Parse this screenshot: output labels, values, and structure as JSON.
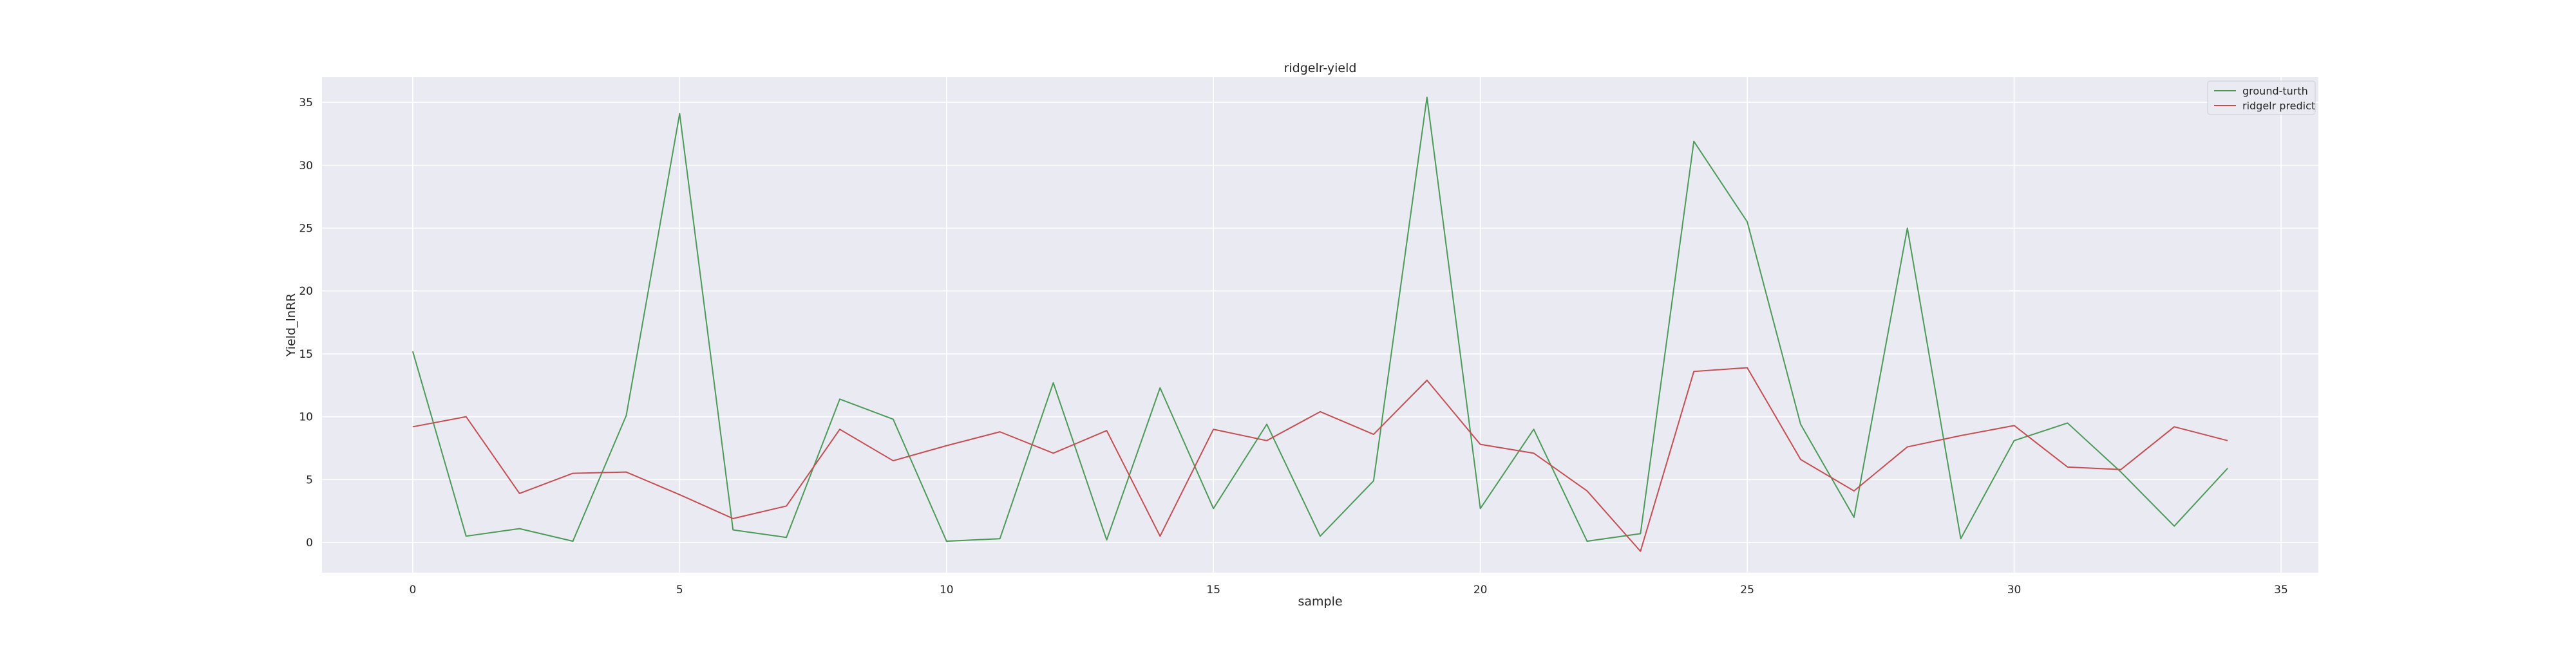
{
  "chart_data": {
    "type": "line",
    "title": "ridgelr-yield",
    "xlabel": "sample",
    "ylabel": "Yield_lnRR",
    "xlim": [
      -1.7,
      35.7
    ],
    "ylim": [
      -2.4,
      37.0
    ],
    "xticks": [
      0,
      5,
      10,
      15,
      20,
      25,
      30,
      35
    ],
    "yticks": [
      0,
      5,
      10,
      15,
      20,
      25,
      30,
      35
    ],
    "grid": true,
    "legend_position": "top-right",
    "background_color": "#eaeaf2",
    "x": [
      0,
      1,
      2,
      3,
      4,
      5,
      6,
      7,
      8,
      9,
      10,
      11,
      12,
      13,
      14,
      15,
      16,
      17,
      18,
      19,
      20,
      21,
      22,
      23,
      24,
      25,
      26,
      27,
      28,
      29,
      30,
      31,
      32,
      33,
      34
    ],
    "series": [
      {
        "name": "ground-turth",
        "color": "#4c9a58",
        "values": [
          15.2,
          0.5,
          1.1,
          0.1,
          10.1,
          34.1,
          1.0,
          0.4,
          11.4,
          9.8,
          0.1,
          0.3,
          12.7,
          0.2,
          12.3,
          2.7,
          9.4,
          0.5,
          4.9,
          35.4,
          2.7,
          9.0,
          0.1,
          0.7,
          31.9,
          25.5,
          9.4,
          2.0,
          25.0,
          0.3,
          8.1,
          9.5,
          5.6,
          1.3,
          5.9
        ]
      },
      {
        "name": "ridgelr predict",
        "color": "#c44e52",
        "values": [
          9.2,
          10.0,
          3.9,
          5.5,
          5.6,
          3.8,
          1.9,
          2.9,
          9.0,
          6.5,
          7.7,
          8.8,
          7.1,
          8.9,
          0.5,
          9.0,
          8.1,
          10.4,
          8.6,
          12.9,
          7.8,
          7.1,
          4.1,
          -0.7,
          13.6,
          13.9,
          6.6,
          4.1,
          7.6,
          8.5,
          9.3,
          6.0,
          5.8,
          9.2,
          8.1
        ]
      }
    ]
  }
}
